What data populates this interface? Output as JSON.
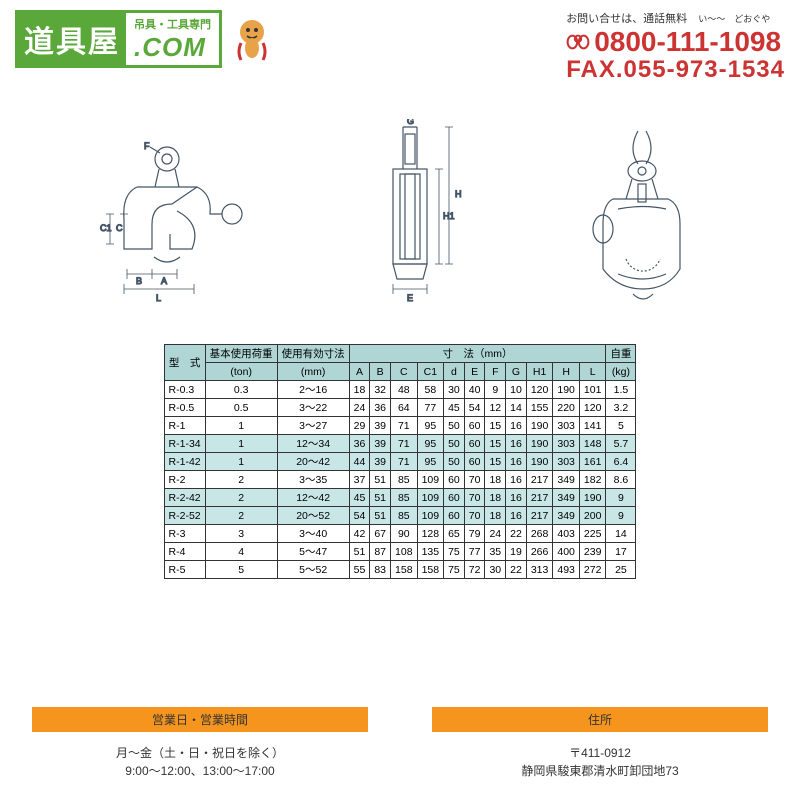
{
  "header": {
    "logo_main": "道具屋",
    "logo_subtitle": "吊具・工具専門",
    "logo_com": ".COM",
    "contact_label": "お問い合せは、通話無料",
    "contact_ruby": "い〜〜　どおぐや",
    "phone": "0800-111-1098",
    "fax": "FAX.055-973-1534"
  },
  "table": {
    "headers": {
      "model": "型　式",
      "load": "基本使用荷重",
      "load_unit": "(ton)",
      "range": "使用有効寸法",
      "range_unit": "(mm)",
      "dims": "寸　法（mm）",
      "dim_cols": [
        "A",
        "B",
        "C",
        "C1",
        "d",
        "E",
        "F",
        "G",
        "H1",
        "H",
        "L"
      ],
      "weight": "自重",
      "weight_unit": "(kg)"
    },
    "rows": [
      {
        "m": "R-0.3",
        "t": "0.3",
        "r": "2〜16",
        "d": [
          "18",
          "32",
          "48",
          "58",
          "30",
          "40",
          "9",
          "10",
          "120",
          "190",
          "101"
        ],
        "w": "1.5",
        "hl": false
      },
      {
        "m": "R-0.5",
        "t": "0.5",
        "r": "3〜22",
        "d": [
          "24",
          "36",
          "64",
          "77",
          "45",
          "54",
          "12",
          "14",
          "155",
          "220",
          "120"
        ],
        "w": "3.2",
        "hl": false
      },
      {
        "m": "R-1",
        "t": "1",
        "r": "3〜27",
        "d": [
          "29",
          "39",
          "71",
          "95",
          "50",
          "60",
          "15",
          "16",
          "190",
          "303",
          "141"
        ],
        "w": "5",
        "hl": false
      },
      {
        "m": "R-1-34",
        "t": "1",
        "r": "12〜34",
        "d": [
          "36",
          "39",
          "71",
          "95",
          "50",
          "60",
          "15",
          "16",
          "190",
          "303",
          "148"
        ],
        "w": "5.7",
        "hl": true
      },
      {
        "m": "R-1-42",
        "t": "1",
        "r": "20〜42",
        "d": [
          "44",
          "39",
          "71",
          "95",
          "50",
          "60",
          "15",
          "16",
          "190",
          "303",
          "161"
        ],
        "w": "6.4",
        "hl": true
      },
      {
        "m": "R-2",
        "t": "2",
        "r": "3〜35",
        "d": [
          "37",
          "51",
          "85",
          "109",
          "60",
          "70",
          "18",
          "16",
          "217",
          "349",
          "182"
        ],
        "w": "8.6",
        "hl": false
      },
      {
        "m": "R-2-42",
        "t": "2",
        "r": "12〜42",
        "d": [
          "45",
          "51",
          "85",
          "109",
          "60",
          "70",
          "18",
          "16",
          "217",
          "349",
          "190"
        ],
        "w": "9",
        "hl": true
      },
      {
        "m": "R-2-52",
        "t": "2",
        "r": "20〜52",
        "d": [
          "54",
          "51",
          "85",
          "109",
          "60",
          "70",
          "18",
          "16",
          "217",
          "349",
          "200"
        ],
        "w": "9",
        "hl": true
      },
      {
        "m": "R-3",
        "t": "3",
        "r": "3〜40",
        "d": [
          "42",
          "67",
          "90",
          "128",
          "65",
          "79",
          "24",
          "22",
          "268",
          "403",
          "225"
        ],
        "w": "14",
        "hl": false
      },
      {
        "m": "R-4",
        "t": "4",
        "r": "5〜47",
        "d": [
          "51",
          "87",
          "108",
          "135",
          "75",
          "77",
          "35",
          "19",
          "266",
          "400",
          "239"
        ],
        "w": "17",
        "hl": false
      },
      {
        "m": "R-5",
        "t": "5",
        "r": "5〜52",
        "d": [
          "55",
          "83",
          "158",
          "158",
          "75",
          "72",
          "30",
          "22",
          "313",
          "493",
          "272"
        ],
        "w": "25",
        "hl": false
      }
    ]
  },
  "footer": {
    "hours_head": "営業日・営業時間",
    "hours_line1": "月〜金（土・日・祝日を除く）",
    "hours_line2": "9:00〜12:00、13:00〜17:00",
    "addr_head": "住所",
    "addr_line1": "〒411-0912",
    "addr_line2": "静岡県駿東郡清水町卸団地73"
  },
  "colors": {
    "brand_green": "#5aa83a",
    "brand_red": "#cc3333",
    "th_bg": "#b0d5d5",
    "hl_bg": "#c8e6e6",
    "footer_orange": "#f5951e",
    "diagram_stroke": "#445566"
  }
}
